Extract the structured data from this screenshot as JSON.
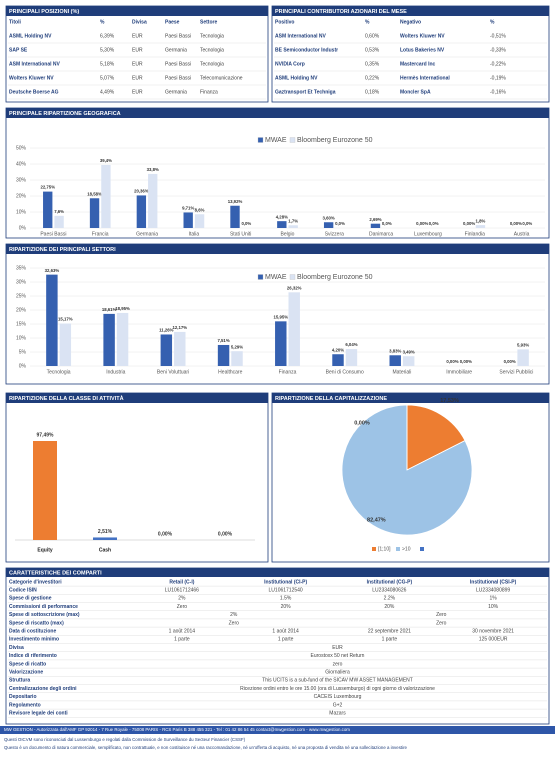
{
  "positions": {
    "title": "PRINCIPALI POSIZIONI (%)",
    "headers": [
      "Titoli",
      "%",
      "Divisa",
      "Paese",
      "Settore"
    ],
    "rows": [
      [
        "ASML Holding NV",
        "6,39%",
        "EUR",
        "Paesi Bassi",
        "Tecnologia"
      ],
      [
        "SAP SE",
        "5,30%",
        "EUR",
        "Germania",
        "Tecnologia"
      ],
      [
        "ASM International NV",
        "5,18%",
        "EUR",
        "Paesi Bassi",
        "Tecnologia"
      ],
      [
        "Wolters Kluwer NV",
        "5,07%",
        "EUR",
        "Paesi Bassi",
        "Telecomunicazione"
      ],
      [
        "Deutsche Boerse AG",
        "4,49%",
        "EUR",
        "Germania",
        "Finanza"
      ]
    ]
  },
  "contributors": {
    "title": "PRINCIPALI CONTRIBUTORI AZIONARI  DEL MESE",
    "headers": [
      "Positivo",
      "%",
      "Negativo",
      "%"
    ],
    "rows": [
      [
        "ASM International NV",
        "0,60%",
        "Wolters Kluwer NV",
        "-0,51%"
      ],
      [
        "BE Semiconductor Industr",
        "0,53%",
        "Lotus Bakeries NV",
        "-0,33%"
      ],
      [
        "NVIDIA Corp",
        "0,35%",
        "Mastercard Inc",
        "-0,22%"
      ],
      [
        "ASML Holding NV",
        "0,22%",
        "Hermès International",
        "-0,19%"
      ],
      [
        "Gaztransport Et Techniga",
        "0,18%",
        "Moncler SpA",
        "-0,16%"
      ]
    ]
  },
  "chart_data": [
    {
      "type": "bar",
      "title": "PRINCIPALE RIPARTIZIONE GEOGRAFICA",
      "categories": [
        "Paesi Bassi",
        "Francia",
        "Germania",
        "Italia",
        "Stati Uniti",
        "Belgio",
        "Svizzera",
        "Danimarca",
        "Luxembourg",
        "Finlandia",
        "Austria"
      ],
      "series": [
        {
          "name": "MWAE",
          "color": "#3560b0",
          "values": [
            22.75,
            18.58,
            20.36,
            9.71,
            13.92,
            4.28,
            3.6,
            2.69,
            0.0,
            0.0,
            0.0
          ],
          "value_labels": [
            "22,75%",
            "18,58%",
            "20,36%",
            "9,71%",
            "13,92%",
            "4,28%",
            "3,60%",
            "2,69%",
            "0,00%",
            "0,00%",
            "0,00%"
          ]
        },
        {
          "name": "Bloomberg Eurozone 50",
          "color": "#dae3f3",
          "values": [
            7.6,
            39.4,
            33.8,
            8.6,
            0.0,
            1.7,
            0.0,
            0.0,
            0.0,
            1.8,
            0.0
          ],
          "value_labels": [
            "7,6%",
            "39,4%",
            "33,8%",
            "8,6%",
            "0,0%",
            "1,7%",
            "0,0%",
            "0,0%",
            "0,0%",
            "1,8%",
            "0,0%"
          ]
        }
      ],
      "ylim": [
        0,
        50
      ],
      "yticks": [
        {
          "value": 0,
          "label": "0%"
        },
        {
          "value": 10,
          "label": "10%"
        },
        {
          "value": 20,
          "label": "20%"
        },
        {
          "value": 30,
          "label": "30%"
        },
        {
          "value": 40,
          "label": "40%"
        },
        {
          "value": 50,
          "label": "50%"
        }
      ],
      "grid": true,
      "legend": "top"
    },
    {
      "type": "bar",
      "title": "RIPARTIZIONE DEI PRINCIPALI SETTORI",
      "categories": [
        "Tecnologia",
        "Industria",
        "Beni Voluttuari",
        "Healthcare",
        "Finanza",
        "Beni di Consumo",
        "Materiali",
        "Immobiliare",
        "Servizi Pubblici"
      ],
      "series": [
        {
          "name": "MWAE",
          "color": "#3560b0",
          "values": [
            32.63,
            18.61,
            11.26,
            7.51,
            15.95,
            4.2,
            3.83,
            0.0,
            0.0
          ],
          "value_labels": [
            "32,63%",
            "18,61%",
            "11,26%",
            "7,51%",
            "15,95%",
            "4,20%",
            "3,83%",
            "0,00%",
            "0,00%"
          ]
        },
        {
          "name": "Bloomberg Eurozone 50",
          "color": "#dae3f3",
          "values": [
            15.17,
            18.95,
            12.17,
            5.29,
            26.32,
            6.04,
            3.49,
            0.0,
            5.93
          ],
          "value_labels": [
            "15,17%",
            "18,95%",
            "12,17%",
            "5,29%",
            "26,32%",
            "6,04%",
            "3,49%",
            "0,00%",
            "5,93%"
          ]
        }
      ],
      "ylim": [
        0,
        35
      ],
      "yticks": [
        {
          "value": 0,
          "label": "0%"
        },
        {
          "value": 5,
          "label": "5%"
        },
        {
          "value": 10,
          "label": "10%"
        },
        {
          "value": 15,
          "label": "15%"
        },
        {
          "value": 20,
          "label": "20%"
        },
        {
          "value": 25,
          "label": "25%"
        },
        {
          "value": 30,
          "label": "30%"
        },
        {
          "value": 35,
          "label": "35%"
        }
      ],
      "grid": true,
      "legend": "top"
    },
    {
      "type": "bar",
      "title": "RIPARTIZIONE DELLA CLASSE DI ATTIVITÀ",
      "categories": [
        "Equity",
        "Cash",
        null,
        null
      ],
      "values": [
        97.49,
        2.51,
        0.0,
        0.0
      ],
      "value_labels": [
        "97,49%",
        "2,51%",
        "0,00%",
        "0,00%"
      ],
      "colors": [
        "#ed7d31",
        "#4472c4",
        "#4472c4",
        "#4472c4"
      ]
    },
    {
      "type": "pie",
      "title": "RIPARTIZIONE DELLA CAPITALIZZAZIONE",
      "categories": [
        "[1;10]",
        ">10",
        null
      ],
      "values": [
        17.53,
        82.47,
        0.0
      ],
      "value_labels": [
        "17,53%",
        "82,47%",
        "0,00%"
      ],
      "colors": [
        "#ed7d31",
        "#9dc3e6",
        "#4472c4"
      ],
      "legend": "bottom"
    }
  ],
  "characteristics": {
    "title": "CARATTERISTICHE DEI COMPARTI",
    "headers": [
      "Categorie d'investitori",
      "Retail (C-I)",
      "Institutional (CI-P)",
      "Institutional (CG-P)",
      "Institutional (CSI-P)"
    ],
    "rows": [
      [
        "Codice ISIN",
        "LU1061712466",
        "LU1061712540",
        "LU2334080626",
        "LU2334080899"
      ],
      [
        "Spese di gestione",
        "2%",
        "1.5%",
        "2.2%",
        "1%"
      ],
      [
        "Commissioni di performance",
        "Zero",
        "20%",
        "20%",
        "10%"
      ],
      [
        "Spese di sottoscrizione (max)",
        "2%",
        "Zero"
      ],
      [
        "Spese di riscatto (max)",
        "Zero",
        "Zero"
      ],
      [
        "Data di costituzione",
        "1 août 2014",
        "1 août 2014",
        "22 septembre 2021",
        "30 novembre 2021"
      ],
      [
        "Investimento minimo",
        "1 parte",
        "1 parte",
        "1 parte",
        "125 000EUR"
      ],
      [
        "Divisa",
        "EUR"
      ],
      [
        "Indice di riferimento",
        "Eurostoxx 50 net Return"
      ],
      [
        "Spese di ricatto",
        "zero"
      ],
      [
        "Valorizzazione",
        "Giornaliera"
      ],
      [
        "Struttura",
        "This UCITS is a sub-fund of the SICAV MW ASSET MANAGEMENT"
      ],
      [
        "Centralizzazione degli ordini",
        "Ricezione ordini entro le ore 15.00 (ora di Lussemburgo) di ogni giorno di valorizzazione"
      ],
      [
        "Depositario",
        "CACEIS Luxembourg"
      ],
      [
        "Regolamento",
        "G+2"
      ],
      [
        "Revisore legale dei conti",
        "Mazars"
      ]
    ]
  },
  "footer": {
    "address": "MW GESTION - Autorizzata dall'AMF GP 92014 - 7 Rue Royale - 75008 PARIS - RCS Paris B 388 455 321 - Tel : 01 42 86 54 45 contact@mwgestion.com - www.mwgestion.com",
    "notes": [
      "Questi OICVM sono riconosciuti dal Lussemburgo e regolati dalla Commission de Surveillance du Secteur Financier (CSSF)",
      "Questo è un documento di natura commerciale, semplificato, non contrattuale, e non costituisce né una raccomandazione, né un'offerta di acquisto, né una proposta di vendita né una sollecitazione a investire"
    ]
  }
}
